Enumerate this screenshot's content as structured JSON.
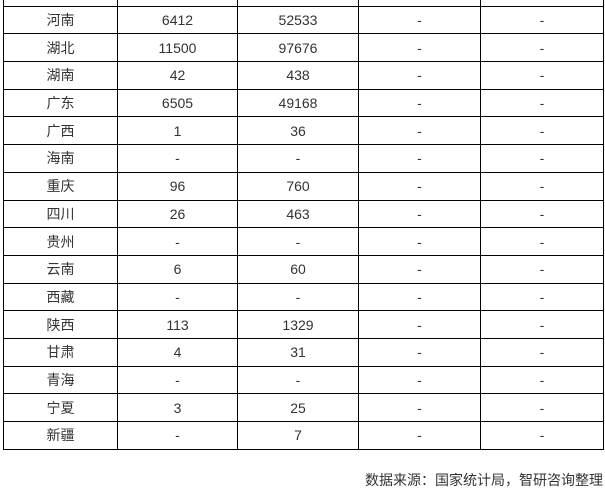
{
  "chart_data": {
    "type": "table",
    "title": "",
    "columns_visible_headers": [],
    "categories": [
      "河南",
      "湖北",
      "湖南",
      "广东",
      "广西",
      "海南",
      "重庆",
      "四川",
      "贵州",
      "云南",
      "西藏",
      "陕西",
      "甘肃",
      "青海",
      "宁夏",
      "新疆"
    ],
    "series": [
      {
        "name": "value-column-1",
        "values": [
          "6412",
          "11500",
          "42",
          "6505",
          "1",
          "-",
          "96",
          "26",
          "-",
          "6",
          "-",
          "113",
          "4",
          "-",
          "3",
          "-"
        ]
      },
      {
        "name": "value-column-2",
        "values": [
          "52533",
          "97676",
          "438",
          "49168",
          "36",
          "-",
          "760",
          "463",
          "-",
          "60",
          "-",
          "1329",
          "31",
          "-",
          "25",
          "7"
        ]
      },
      {
        "name": "value-column-3",
        "values": [
          "-",
          "-",
          "-",
          "-",
          "-",
          "-",
          "-",
          "-",
          "-",
          "-",
          "-",
          "-",
          "-",
          "-",
          "-",
          "-"
        ]
      },
      {
        "name": "value-column-4",
        "values": [
          "-",
          "-",
          "-",
          "-",
          "-",
          "-",
          "-",
          "-",
          "-",
          "-",
          "-",
          "-",
          "-",
          "-",
          "-",
          "-"
        ]
      }
    ],
    "source_note": "数据来源：国家统计局，智研咨询整理"
  },
  "colors": {
    "background": "#ffffff",
    "table_border": "#000000",
    "text": "#333333"
  }
}
